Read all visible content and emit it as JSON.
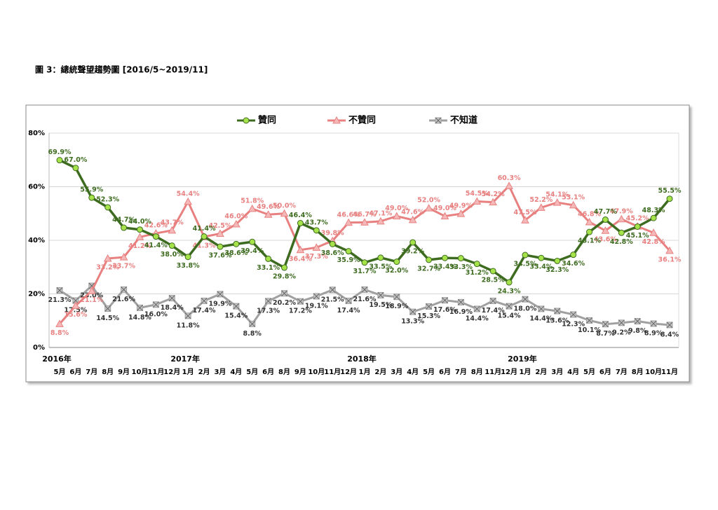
{
  "chart_data": {
    "type": "line",
    "title": "圖 3：總統聲望趨勢圖 [2016/5~2019/11]",
    "category_groups": [
      {
        "name": "2016年",
        "categories": [
          "5月",
          "6月",
          "7月",
          "8月",
          "9月",
          "10月",
          "11月",
          "12月"
        ]
      },
      {
        "name": "2017年",
        "categories": [
          "1月",
          "2月",
          "3月",
          "4月",
          "5月",
          "6月",
          "8月",
          "9月",
          "10月",
          "11月",
          "12月"
        ]
      },
      {
        "name": "2018年",
        "categories": [
          "1月",
          "2月",
          "3月",
          "4月",
          "5月",
          "6月",
          "7月",
          "8月",
          "11月",
          "12月"
        ]
      },
      {
        "name": "2019年",
        "categories": [
          "1月",
          "2月",
          "3月",
          "4月",
          "5月",
          "6月",
          "7月",
          "8月",
          "10月",
          "11月"
        ]
      }
    ],
    "series": [
      {
        "name": "贊同",
        "color": "#3d6b1f",
        "marker_color": "#a6e24a",
        "marker": "circle",
        "values": [
          69.9,
          67.0,
          55.9,
          52.3,
          44.7,
          44.0,
          41.4,
          38.0,
          33.8,
          41.4,
          37.6,
          38.6,
          39.4,
          33.1,
          29.8,
          46.4,
          43.7,
          38.6,
          35.9,
          31.7,
          33.5,
          32.0,
          39.2,
          32.7,
          33.4,
          33.3,
          31.2,
          28.5,
          24.3,
          34.5,
          33.4,
          32.3,
          34.6,
          43.1,
          47.7,
          42.8,
          45.1,
          48.3,
          55.5
        ],
        "value_labels": [
          "69.9%",
          "67.0%",
          "55.9%",
          "52.3%",
          "44.7%",
          "44.0%",
          "41.4%",
          "38.0%",
          "33.8%",
          "41.4%",
          "37.6%",
          "38.6%",
          "39.4%",
          "33.1%",
          "29.8%",
          "46.4%",
          "43.7%",
          "38.6%",
          "35.9%",
          "31.7%",
          "33.5%",
          "32.0%",
          "39.2%",
          "32.7%",
          "33.4%",
          "33.3%",
          "31.2%",
          "28.5%",
          "24.3%",
          "34.5%",
          "33.4%",
          "32.3%",
          "34.6%",
          "43.1%",
          "47.7%",
          "42.8%",
          "45.1%",
          "48.3%",
          "55.5%"
        ]
      },
      {
        "name": "不贊同",
        "color": "#e88080",
        "marker_color": "#f5b8b8",
        "marker": "triangle",
        "values": [
          8.8,
          15.6,
          21.1,
          33.2,
          33.7,
          41.2,
          42.6,
          43.7,
          54.4,
          41.3,
          42.5,
          46.0,
          51.8,
          49.6,
          50.0,
          36.4,
          37.3,
          39.8,
          46.6,
          46.7,
          47.1,
          49.0,
          47.6,
          52.0,
          49.0,
          49.9,
          54.5,
          54.2,
          60.3,
          47.5,
          52.2,
          54.1,
          53.1,
          46.8,
          43.6,
          47.9,
          45.2,
          42.8,
          36.1
        ],
        "value_labels": [
          "8.8%",
          "15.6%",
          "21.1%",
          "33.2%",
          "33.7%",
          "41.2%",
          "42.6%",
          "43.7%",
          "54.4%",
          "41.3%",
          "42.5%",
          "46.0%",
          "51.8%",
          "49.6%",
          "50.0%",
          "36.4%",
          "37.3%",
          "39.8%",
          "46.6%",
          "46.7%",
          "47.1%",
          "49.0%",
          "47.6%",
          "52.0%",
          "49.0%",
          "49.9%",
          "54.5%",
          "54.2%",
          "60.3%",
          "47.5%",
          "52.2%",
          "54.1%",
          "53.1%",
          "46.8%",
          "43.6%",
          "47.9%",
          "45.2%",
          "42.8%",
          "36.1%"
        ]
      },
      {
        "name": "不知道",
        "color": "#a0a0a0",
        "marker_color": "#c4c4c4",
        "marker": "x",
        "values": [
          21.3,
          17.5,
          23.0,
          14.5,
          21.6,
          14.8,
          16.0,
          18.4,
          11.8,
          17.4,
          19.9,
          15.4,
          8.8,
          17.3,
          20.2,
          17.2,
          19.1,
          21.5,
          17.4,
          21.6,
          19.5,
          18.9,
          13.3,
          15.3,
          17.6,
          16.9,
          14.4,
          17.4,
          15.4,
          18.0,
          14.4,
          13.6,
          12.3,
          10.1,
          8.7,
          9.2,
          9.8,
          8.9,
          8.4
        ],
        "value_labels": [
          "21.3%",
          "17.5%",
          "23.0%",
          "14.5%",
          "21.6%",
          "14.8%",
          "16.0%",
          "18.4%",
          "11.8%",
          "17.4%",
          "19.9%",
          "15.4%",
          "8.8%",
          "17.3%",
          "20.2%",
          "17.2%",
          "19.1%",
          "21.5%",
          "17.4%",
          "21.6%",
          "19.5%",
          "18.9%",
          "13.3%",
          "15.3%",
          "17.6%",
          "16.9%",
          "14.4%",
          "17.4%",
          "15.4%",
          "18.0%",
          "14.4%",
          "13.6%",
          "12.3%",
          "10.1%",
          "8.7%",
          "9.2%",
          "9.8%",
          "8.9%",
          "8.4%"
        ]
      }
    ],
    "ylim": [
      0,
      80
    ],
    "yticks": [
      {
        "value": 0,
        "label": "0%"
      },
      {
        "value": 20,
        "label": "20%"
      },
      {
        "value": 40,
        "label": "40%"
      },
      {
        "value": 60,
        "label": "60%"
      },
      {
        "value": 80,
        "label": "80%"
      }
    ],
    "grid": true,
    "legend": "top"
  }
}
